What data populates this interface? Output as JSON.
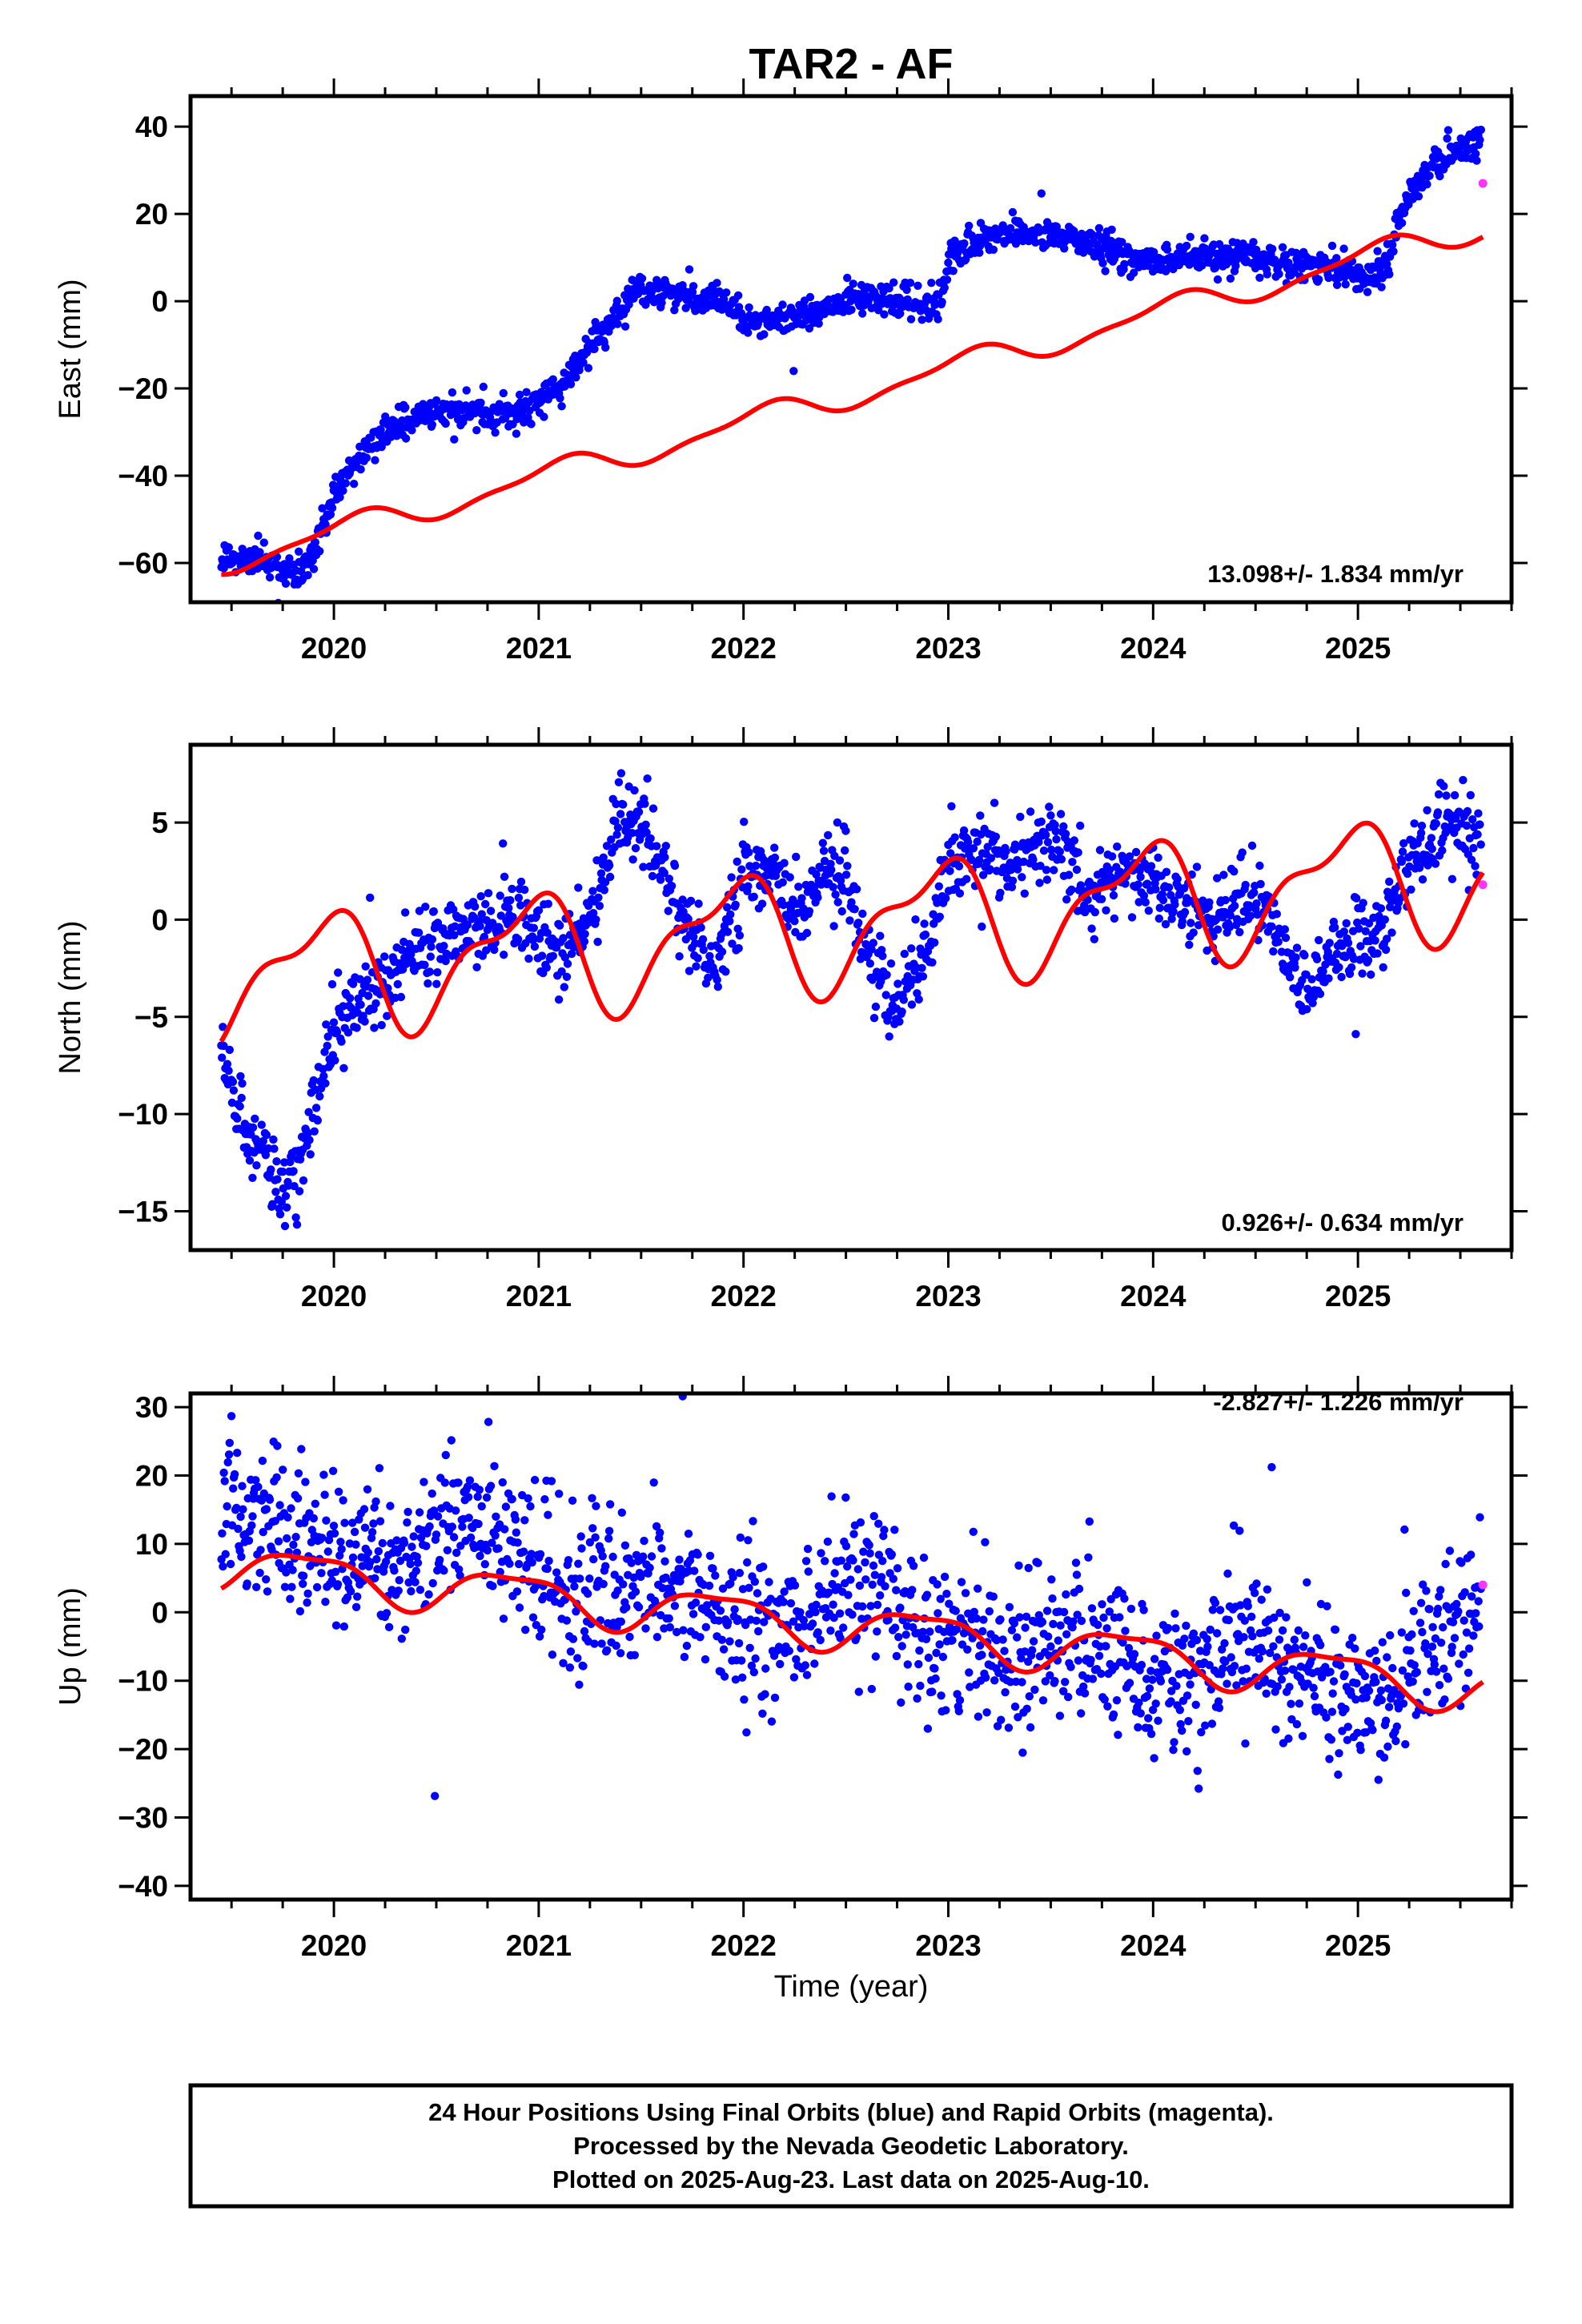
{
  "title": "TAR2 - AF",
  "colors": {
    "final_orbits": "#0000ff",
    "rapid_orbits": "#ff33ff",
    "model": "#ff0000",
    "frame": "#000000"
  },
  "x_tick_labels": [
    "2020",
    "2021",
    "2022",
    "2023",
    "2024",
    "2025"
  ],
  "xlabel": "Time (year)",
  "footer": {
    "line1": "24 Hour Positions Using Final Orbits (blue) and Rapid Orbits (magenta).",
    "line2": "Processed by the Nevada Geodetic Laboratory.",
    "line3": "Plotted on 2025-Aug-23. Last data on 2025-Aug-10."
  },
  "chart_data": [
    {
      "type": "scatter",
      "panel": "east",
      "ylabel": "East (mm)",
      "rate_text": "13.098+/- 1.834 mm/yr",
      "xlim": [
        2019.3,
        2025.75
      ],
      "ylim": [
        -69,
        47
      ],
      "yticks": [
        -60,
        -40,
        -20,
        0,
        20,
        40
      ],
      "rapid_point": {
        "x": 2025.61,
        "y": 27
      },
      "final_trend": [
        [
          2019.45,
          -59
        ],
        [
          2019.6,
          -59
        ],
        [
          2019.75,
          -61
        ],
        [
          2019.85,
          -63
        ],
        [
          2019.92,
          -55
        ],
        [
          2020.0,
          -44
        ],
        [
          2020.1,
          -38
        ],
        [
          2020.2,
          -32
        ],
        [
          2020.3,
          -29
        ],
        [
          2020.45,
          -26
        ],
        [
          2020.6,
          -25
        ],
        [
          2020.8,
          -26
        ],
        [
          2021.0,
          -23
        ],
        [
          2021.1,
          -20
        ],
        [
          2021.2,
          -14
        ],
        [
          2021.3,
          -8
        ],
        [
          2021.4,
          -2
        ],
        [
          2021.45,
          2
        ],
        [
          2021.55,
          2
        ],
        [
          2021.7,
          1
        ],
        [
          2021.8,
          0
        ],
        [
          2021.9,
          -1
        ],
        [
          2022.0,
          -4
        ],
        [
          2022.15,
          -4
        ],
        [
          2022.3,
          -3
        ],
        [
          2022.45,
          -1
        ],
        [
          2022.55,
          1
        ],
        [
          2022.7,
          0
        ],
        [
          2022.85,
          -1
        ],
        [
          2022.95,
          0
        ],
        [
          2023.0,
          8
        ],
        [
          2023.1,
          13
        ],
        [
          2023.2,
          15
        ],
        [
          2023.35,
          16
        ],
        [
          2023.5,
          15
        ],
        [
          2023.65,
          14
        ],
        [
          2023.8,
          11
        ],
        [
          2023.95,
          9
        ],
        [
          2024.1,
          10
        ],
        [
          2024.3,
          10
        ],
        [
          2024.5,
          10
        ],
        [
          2024.7,
          9
        ],
        [
          2024.9,
          7
        ],
        [
          2025.05,
          6
        ],
        [
          2025.15,
          10
        ],
        [
          2025.22,
          22
        ],
        [
          2025.3,
          28
        ],
        [
          2025.4,
          32
        ],
        [
          2025.5,
          35
        ],
        [
          2025.6,
          36
        ]
      ],
      "final_spread": 1.8,
      "model_curve": {
        "offset": -28.0,
        "t0": 2022.0,
        "rate": 12.5,
        "a1": 2.8,
        "p1": 1.0,
        "a2": 1.0,
        "p2": -1.0
      }
    },
    {
      "type": "scatter",
      "panel": "north",
      "ylabel": "North (mm)",
      "rate_text": "0.926+/- 0.634 mm/yr",
      "xlim": [
        2019.3,
        2025.75
      ],
      "ylim": [
        -17,
        9
      ],
      "yticks": [
        -15,
        -10,
        -5,
        0,
        5
      ],
      "rapid_point": {
        "x": 2025.61,
        "y": 1.8
      },
      "final_trend": [
        [
          2019.45,
          -7
        ],
        [
          2019.55,
          -10
        ],
        [
          2019.65,
          -12
        ],
        [
          2019.75,
          -14
        ],
        [
          2019.85,
          -12
        ],
        [
          2019.95,
          -8
        ],
        [
          2020.05,
          -5
        ],
        [
          2020.2,
          -3.5
        ],
        [
          2020.35,
          -2
        ],
        [
          2020.5,
          -1
        ],
        [
          2020.6,
          -0.5
        ],
        [
          2020.75,
          0
        ],
        [
          2020.9,
          0
        ],
        [
          2021.0,
          -1
        ],
        [
          2021.1,
          -2
        ],
        [
          2021.2,
          -1
        ],
        [
          2021.3,
          2
        ],
        [
          2021.4,
          5.5
        ],
        [
          2021.5,
          5
        ],
        [
          2021.6,
          3
        ],
        [
          2021.7,
          0
        ],
        [
          2021.8,
          -2
        ],
        [
          2021.9,
          -1.5
        ],
        [
          2022.0,
          2
        ],
        [
          2022.1,
          3
        ],
        [
          2022.2,
          1
        ],
        [
          2022.3,
          1
        ],
        [
          2022.4,
          2
        ],
        [
          2022.5,
          2
        ],
        [
          2022.6,
          -1
        ],
        [
          2022.7,
          -4
        ],
        [
          2022.8,
          -4
        ],
        [
          2022.9,
          -2
        ],
        [
          2023.0,
          3
        ],
        [
          2023.15,
          3.5
        ],
        [
          2023.3,
          3
        ],
        [
          2023.45,
          4
        ],
        [
          2023.6,
          3.5
        ],
        [
          2023.7,
          1
        ],
        [
          2023.85,
          2.5
        ],
        [
          2023.95,
          2
        ],
        [
          2024.1,
          1
        ],
        [
          2024.25,
          0
        ],
        [
          2024.4,
          1
        ],
        [
          2024.55,
          1
        ],
        [
          2024.65,
          -2
        ],
        [
          2024.75,
          -4
        ],
        [
          2024.85,
          -2
        ],
        [
          2025.0,
          -1
        ],
        [
          2025.1,
          -1
        ],
        [
          2025.2,
          2
        ],
        [
          2025.35,
          4
        ],
        [
          2025.5,
          5
        ],
        [
          2025.6,
          4
        ]
      ],
      "final_spread": 1.0,
      "model_curve": {
        "offset": -0.8,
        "t0": 2022.0,
        "rate": 0.9,
        "a1": 2.8,
        "p1": 2.0,
        "a2": 1.2,
        "p2": 0.3
      }
    },
    {
      "type": "scatter",
      "panel": "up",
      "ylabel": "Up (mm)",
      "rate_text": "-2.827+/- 1.226 mm/yr",
      "xlim": [
        2019.3,
        2025.75
      ],
      "ylim": [
        -42,
        32
      ],
      "yticks": [
        -40,
        -30,
        -20,
        -10,
        0,
        10,
        20,
        30
      ],
      "rapid_point": {
        "x": 2025.61,
        "y": 4
      },
      "final_trend": [
        [
          2019.45,
          16
        ],
        [
          2019.7,
          14
        ],
        [
          2019.95,
          10
        ],
        [
          2020.2,
          7
        ],
        [
          2020.4,
          9
        ],
        [
          2020.6,
          15
        ],
        [
          2020.8,
          11
        ],
        [
          2021.0,
          5
        ],
        [
          2021.2,
          2
        ],
        [
          2021.4,
          3
        ],
        [
          2021.55,
          5
        ],
        [
          2021.7,
          3
        ],
        [
          2022.0,
          -3
        ],
        [
          2022.2,
          -3
        ],
        [
          2022.45,
          3
        ],
        [
          2022.6,
          4
        ],
        [
          2022.8,
          0
        ],
        [
          2023.0,
          -3
        ],
        [
          2023.2,
          -6
        ],
        [
          2023.45,
          -3
        ],
        [
          2023.7,
          -5
        ],
        [
          2023.9,
          -8
        ],
        [
          2024.1,
          -10
        ],
        [
          2024.3,
          -8
        ],
        [
          2024.5,
          -4
        ],
        [
          2024.7,
          -8
        ],
        [
          2024.9,
          -11
        ],
        [
          2025.1,
          -12
        ],
        [
          2025.3,
          -8
        ],
        [
          2025.5,
          -2
        ],
        [
          2025.6,
          -1
        ]
      ],
      "final_spread": 5.5,
      "model_curve": {
        "offset": -2.0,
        "t0": 2022.5,
        "rate": -2.9,
        "a1": 3.2,
        "p1": 2.4,
        "a2": 1.0,
        "p2": 0.0
      }
    }
  ]
}
